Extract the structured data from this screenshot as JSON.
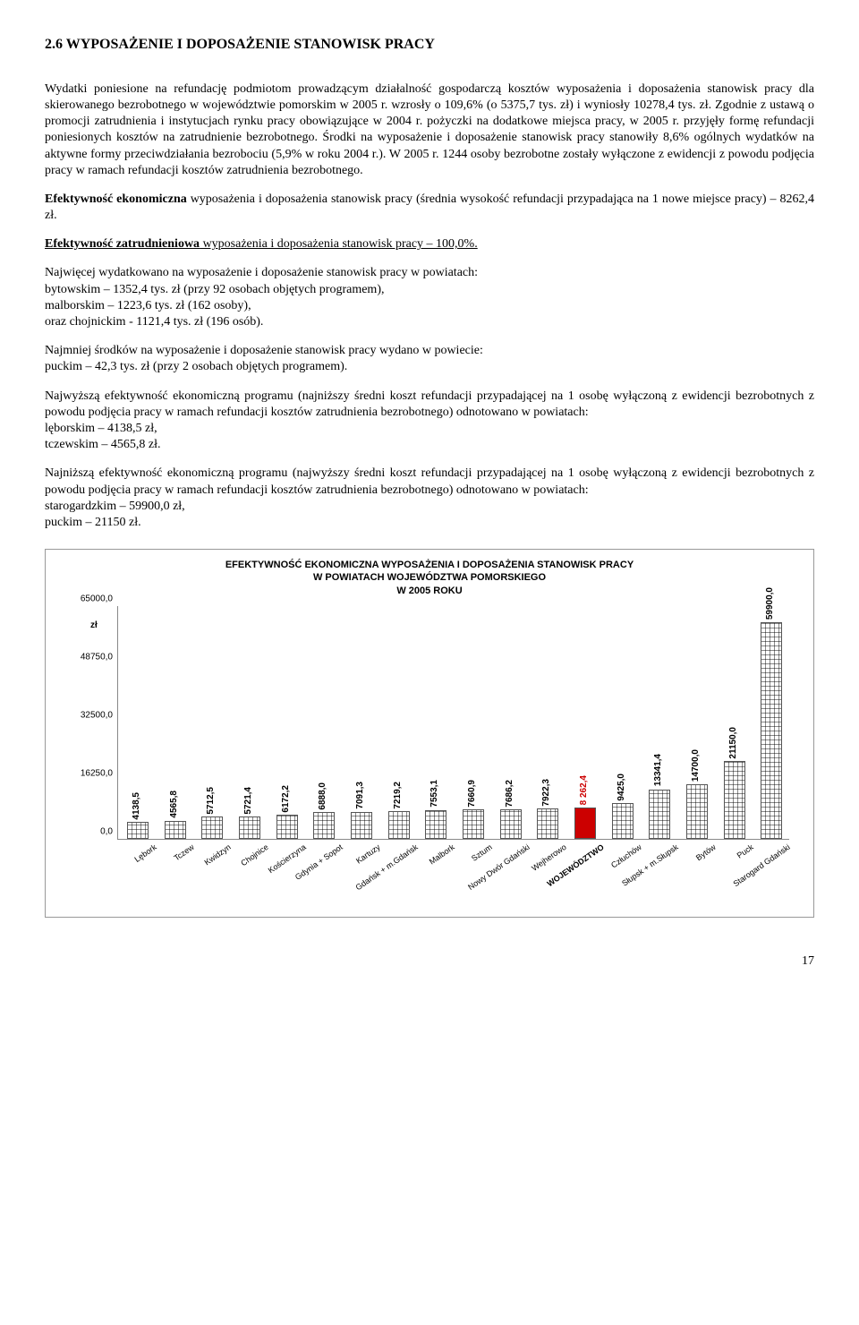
{
  "heading": "2.6 WYPOSAŻENIE I DOPOSAŻENIE STANOWISK PRACY",
  "p1": "Wydatki poniesione na refundację podmiotom prowadzącym działalność gospodarczą kosztów wyposażenia i doposażenia stanowisk pracy dla skierowanego bezrobotnego w województwie pomorskim w 2005 r. wzrosły o 109,6% (o 5375,7 tys. zł) i wyniosły 10278,4 tys. zł. Zgodnie z ustawą o promocji zatrudnienia i instytucjach rynku pracy obowiązujące w 2004 r. pożyczki na dodatkowe miejsca pracy, w 2005 r. przyjęły formę refundacji poniesionych kosztów na zatrudnienie bezrobotnego. Środki na wyposażenie i doposażenie stanowisk pracy stanowiły 8,6% ogólnych wydatków na aktywne formy przeciwdziałania bezrobociu (5,9% w roku 2004 r.). W 2005 r. 1244 osoby bezrobotne zostały wyłączone z ewidencji z powodu podjęcia pracy w ramach refundacji kosztów zatrudnienia bezrobotnego.",
  "p2a": "Efektywność ekonomiczna",
  "p2b": " wyposażenia i doposażenia stanowisk pracy (średnia wysokość refundacji przypadająca na 1 nowe miejsce pracy) – 8262,4 zł.",
  "p3a": "Efektywność zatrudnieniowa",
  "p3b": " wyposażenia i doposażenia stanowisk pracy – 100,0%.",
  "p4": "Najwięcej wydatkowano na wyposażenie i doposażenie stanowisk pracy w powiatach:\nbytowskim – 1352,4 tys. zł (przy 92 osobach objętych programem),\nmalborskim – 1223,6 tys. zł (162 osoby),\noraz chojnickim - 1121,4 tys. zł (196 osób).",
  "p5": "Najmniej środków na wyposażenie i doposażenie stanowisk pracy wydano w powiecie:\npuckim – 42,3 tys. zł (przy 2 osobach objętych programem).",
  "p6": "Najwyższą efektywność ekonomiczną programu (najniższy średni koszt refundacji przypadającej na 1 osobę wyłączoną z ewidencji bezrobotnych z powodu podjęcia pracy w ramach refundacji kosztów zatrudnienia bezrobotnego) odnotowano w powiatach:\nlęborskim – 4138,5 zł,\ntczewskim – 4565,8 zł.",
  "p7": "Najniższą efektywność ekonomiczną programu (najwyższy średni koszt refundacji przypadającej na 1 osobę wyłączoną z ewidencji bezrobotnych z powodu podjęcia pracy w ramach refundacji kosztów zatrudnienia bezrobotnego) odnotowano w powiatach:\nstarogardzkim – 59900,0 zł,\npuckim – 21150 zł.",
  "page_number": "17",
  "chart": {
    "title": "EFEKTYWNOŚĆ EKONOMICZNA WYPOSAŻENIA I DOPOSAŻENIA STANOWISK PRACY\nW  POWIATACH WOJEWÓDZTWA POMORSKIEGO\nW 2005 ROKU",
    "ylabel": "zł",
    "y_ticks": [
      "0,0",
      "16250,0",
      "32500,0",
      "48750,0",
      "65000,0"
    ],
    "ylim": [
      0,
      65000
    ],
    "categories": [
      "Lębork",
      "Tczew",
      "Kwidzyn",
      "Chojnice",
      "Kościerzyna",
      "Gdynia + Sopot",
      "Kartuzy",
      "Gdańsk + m.Gdańsk",
      "Malbork",
      "Sztum",
      "Nowy Dwór Gdański",
      "Wejherowo",
      "WOJEWÓDZTWO",
      "Człuchów",
      "Słupsk + m.Słupsk",
      "Bytów",
      "Puck",
      "Starogard Gdański"
    ],
    "values": [
      4138.5,
      4565.8,
      5712.5,
      5721.4,
      6172.2,
      6888.0,
      7091.3,
      7219.2,
      7553.1,
      7660.9,
      7686.2,
      7922.3,
      8262.4,
      9425.0,
      13341.4,
      14700.0,
      21150.0,
      59900.0
    ],
    "value_labels": [
      "4138,5",
      "4565,8",
      "5712,5",
      "5721,4",
      "6172,2",
      "6888,0",
      "7091,3",
      "7219,2",
      "7553,1",
      "7660,9",
      "7686,2",
      "7922,3",
      "8 262,4",
      "9425,0",
      "13341,4",
      "14700,0",
      "21150,0",
      "59900,0"
    ],
    "highlight_index": 12,
    "highlight_color": "#cc0000",
    "bar_border": "#555555",
    "grid_pattern": true
  }
}
